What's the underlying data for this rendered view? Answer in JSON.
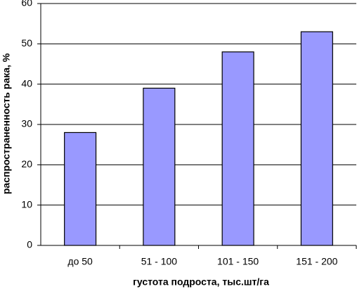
{
  "chart_data": {
    "type": "bar",
    "x_label": "густота подроста, тыс.шт/га",
    "y_label": "распространенность рака, %",
    "categories": [
      "до 50",
      "51 - 100",
      "101 - 150",
      "151 - 200"
    ],
    "values": [
      28,
      39,
      48,
      53
    ],
    "color": "#9999ff",
    "ylim": [
      0,
      60
    ],
    "yticks": [
      0,
      10,
      20,
      30,
      40,
      50,
      60
    ],
    "grid": true
  }
}
